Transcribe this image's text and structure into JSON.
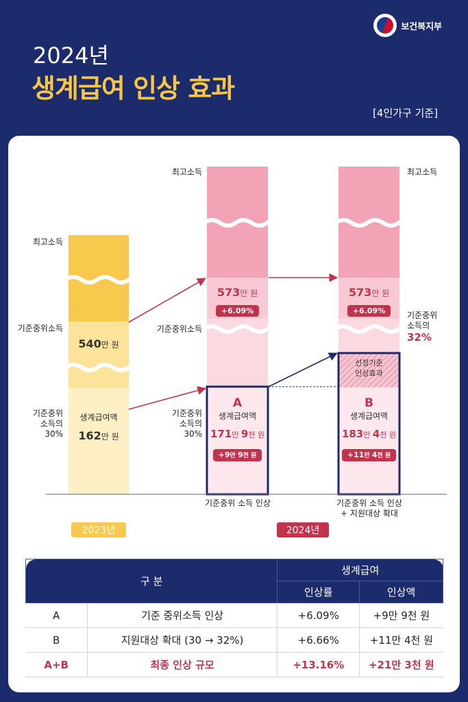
{
  "header": {
    "org_name": "보건복지부",
    "org_icon": "ministry-logo-icon",
    "year_title": "2024년",
    "main_title": "생계급여 인상 효과",
    "basis": "[4인가구 기준]"
  },
  "colors": {
    "navy": "#1c2b6b",
    "yellow": "#f7c548",
    "pink": "#c2334d",
    "light_pink": "#f2bccb",
    "light_yellow": "#fde9a8"
  },
  "chart_data": {
    "type": "bar",
    "title": "",
    "bars": [
      {
        "year": "2023년",
        "top_label": "최고소득",
        "median_label": "기준중위소득",
        "median_value_num": "540",
        "median_value_unit": "만 원",
        "threshold_label": "기준중위\n소득의\n30%",
        "benefit_name": "생계급여액",
        "benefit_num": "162",
        "benefit_unit": "만 원",
        "median_income_만원": 540,
        "benefit_만원": 162,
        "threshold_pct": 30
      },
      {
        "caption": "기준중위 소득 인상",
        "top_label": "최고소득",
        "median_label": "기준중위소득",
        "median_value_num": "573",
        "median_value_unit": "만 원",
        "median_change": "+6.09%",
        "threshold_label": "기준중위\n소득의\n30%",
        "marker": "A",
        "benefit_name": "생계급여액",
        "benefit_parts": [
          "171",
          "만 ",
          "9",
          "천 원"
        ],
        "benefit_change_parts": [
          "+9",
          "만 ",
          "9",
          "천 원"
        ],
        "median_income_만원": 573,
        "benefit_만원": 171.9,
        "threshold_pct": 30
      },
      {
        "caption": "기준중위 소득 인상\n+ 지원대상 확대",
        "top_label": "최고소득",
        "median_value_num": "573",
        "median_value_unit": "만 원",
        "median_change": "+6.09%",
        "threshold_label_1": "기준중위\n소득의",
        "threshold_label_2": "32%",
        "expansion_label": "선정기준\n인상효과",
        "marker": "B",
        "benefit_name": "생계급여액",
        "benefit_parts": [
          "183",
          "만 ",
          "4",
          "천 원"
        ],
        "benefit_change_parts": [
          "+11",
          "만 ",
          "4",
          "천 원"
        ],
        "median_income_만원": 573,
        "benefit_만원": 183.4,
        "threshold_pct": 32
      }
    ],
    "year_2024": "2024년"
  },
  "table": {
    "headers": {
      "category": "구 분",
      "group": "생계급여",
      "rate": "인상률",
      "amount": "인상액"
    },
    "rows": [
      {
        "id": "A",
        "desc": "기준 중위소득 인상",
        "rate": "+6.09%",
        "amount": "+9만 9천 원"
      },
      {
        "id": "B",
        "desc": "지원대상 확대 (30 → 32%)",
        "rate": "+6.66%",
        "amount": "+11만 4천 원"
      },
      {
        "id": "A+B",
        "desc": "최종 인상 규모",
        "rate": "+13.16%",
        "amount": "+21만 3천 원"
      }
    ]
  }
}
